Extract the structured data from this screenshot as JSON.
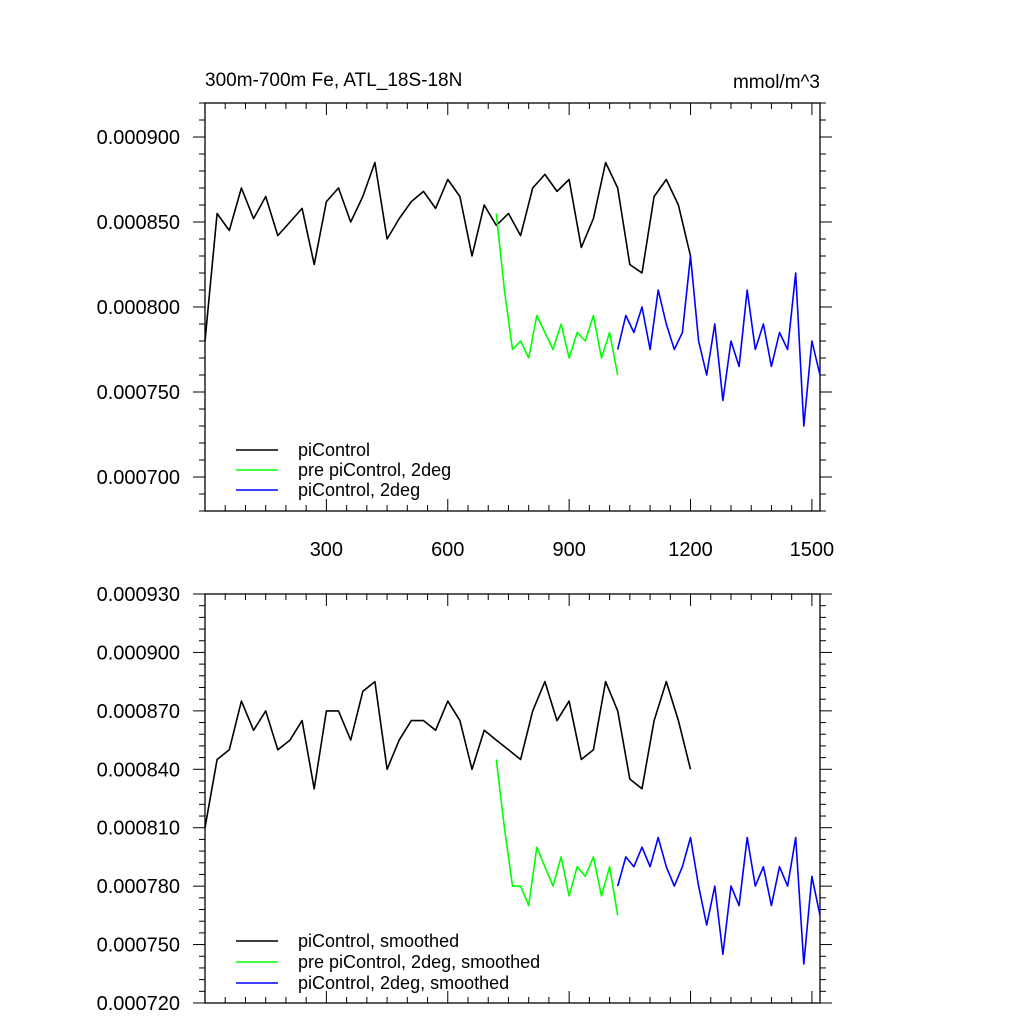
{
  "chart_data": [
    {
      "type": "line",
      "title": "300m-700m Fe, ATL_18S-18N",
      "units": "mmol/m^3",
      "xlim": [
        0,
        1520
      ],
      "ylim": [
        0.00068,
        0.00092
      ],
      "xticks": [
        300,
        600,
        900,
        1200,
        1500
      ],
      "xtick_labels": [
        "300",
        "600",
        "900",
        "1200",
        "1500"
      ],
      "yticks": [
        0.0007,
        0.00075,
        0.0008,
        0.00085,
        0.0009
      ],
      "ytick_labels": [
        "0.000700",
        "0.000750",
        "0.000800",
        "0.000850",
        "0.000900"
      ],
      "legend_position": "bottom-left",
      "series": [
        {
          "name": "piControl",
          "color": "#000000",
          "x": [
            0,
            30,
            60,
            90,
            120,
            150,
            180,
            210,
            240,
            270,
            300,
            330,
            360,
            390,
            420,
            450,
            480,
            510,
            540,
            570,
            600,
            630,
            660,
            690,
            720,
            750,
            780,
            810,
            840,
            870,
            900,
            930,
            960,
            990,
            1020,
            1050,
            1080,
            1110,
            1140,
            1170,
            1200
          ],
          "y": [
            0.00078,
            0.000855,
            0.000845,
            0.00087,
            0.000852,
            0.000865,
            0.000842,
            0.00085,
            0.000858,
            0.000825,
            0.000862,
            0.00087,
            0.00085,
            0.000865,
            0.000885,
            0.00084,
            0.000852,
            0.000862,
            0.000868,
            0.000858,
            0.000875,
            0.000865,
            0.00083,
            0.00086,
            0.000848,
            0.000855,
            0.000842,
            0.00087,
            0.000878,
            0.000868,
            0.000875,
            0.000835,
            0.000852,
            0.000885,
            0.00087,
            0.000825,
            0.00082,
            0.000865,
            0.000875,
            0.00086,
            0.00083
          ]
        },
        {
          "name": "pre piControl, 2deg",
          "color": "#00ff00",
          "x": [
            720,
            740,
            760,
            780,
            800,
            820,
            840,
            860,
            880,
            900,
            920,
            940,
            960,
            980,
            1000,
            1020
          ],
          "y": [
            0.000855,
            0.00081,
            0.000775,
            0.00078,
            0.00077,
            0.000795,
            0.000785,
            0.000775,
            0.00079,
            0.00077,
            0.000785,
            0.00078,
            0.000795,
            0.00077,
            0.000785,
            0.00076
          ]
        },
        {
          "name": "piControl, 2deg",
          "color": "#0000ff",
          "x": [
            1020,
            1040,
            1060,
            1080,
            1100,
            1120,
            1140,
            1160,
            1180,
            1200,
            1220,
            1240,
            1260,
            1280,
            1300,
            1320,
            1340,
            1360,
            1380,
            1400,
            1420,
            1440,
            1460,
            1480,
            1500,
            1520
          ],
          "y": [
            0.000775,
            0.000795,
            0.000785,
            0.0008,
            0.000775,
            0.00081,
            0.00079,
            0.000775,
            0.000785,
            0.00083,
            0.00078,
            0.00076,
            0.00079,
            0.000745,
            0.00078,
            0.000765,
            0.00081,
            0.000775,
            0.00079,
            0.000765,
            0.000785,
            0.000775,
            0.00082,
            0.00073,
            0.00078,
            0.00076
          ]
        }
      ]
    },
    {
      "type": "line",
      "title": "",
      "xlim": [
        0,
        1520
      ],
      "ylim": [
        0.00072,
        0.00093
      ],
      "xticks": [
        300,
        600,
        900,
        1200,
        1500
      ],
      "yticks": [
        0.00072,
        0.00075,
        0.00078,
        0.00081,
        0.00084,
        0.00087,
        0.0009,
        0.00093
      ],
      "ytick_labels": [
        "0.000720",
        "0.000750",
        "0.000780",
        "0.000810",
        "0.000840",
        "0.000870",
        "0.000900",
        "0.000930"
      ],
      "legend_position": "bottom-left",
      "series": [
        {
          "name": "piControl, smoothed",
          "color": "#000000",
          "x": [
            0,
            30,
            60,
            90,
            120,
            150,
            180,
            210,
            240,
            270,
            300,
            330,
            360,
            390,
            420,
            450,
            480,
            510,
            540,
            570,
            600,
            630,
            660,
            690,
            720,
            750,
            780,
            810,
            840,
            870,
            900,
            930,
            960,
            990,
            1020,
            1050,
            1080,
            1110,
            1140,
            1170,
            1200
          ],
          "y": [
            0.00081,
            0.000845,
            0.00085,
            0.000875,
            0.00086,
            0.00087,
            0.00085,
            0.000855,
            0.000865,
            0.00083,
            0.00087,
            0.00087,
            0.000855,
            0.00088,
            0.000885,
            0.00084,
            0.000855,
            0.000865,
            0.000865,
            0.00086,
            0.000875,
            0.000865,
            0.00084,
            0.00086,
            0.000855,
            0.00085,
            0.000845,
            0.00087,
            0.000885,
            0.000865,
            0.000875,
            0.000845,
            0.00085,
            0.000885,
            0.00087,
            0.000835,
            0.00083,
            0.000865,
            0.000885,
            0.000865,
            0.00084
          ]
        },
        {
          "name": "pre piControl, 2deg, smoothed",
          "color": "#00ff00",
          "x": [
            720,
            740,
            760,
            780,
            800,
            820,
            840,
            860,
            880,
            900,
            920,
            940,
            960,
            980,
            1000,
            1020
          ],
          "y": [
            0.000845,
            0.00081,
            0.00078,
            0.00078,
            0.00077,
            0.0008,
            0.00079,
            0.00078,
            0.000795,
            0.000775,
            0.00079,
            0.000785,
            0.000795,
            0.000775,
            0.00079,
            0.000765
          ]
        },
        {
          "name": "piControl, 2deg, smoothed",
          "color": "#0000ff",
          "x": [
            1020,
            1040,
            1060,
            1080,
            1100,
            1120,
            1140,
            1160,
            1180,
            1200,
            1220,
            1240,
            1260,
            1280,
            1300,
            1320,
            1340,
            1360,
            1380,
            1400,
            1420,
            1440,
            1460,
            1480,
            1500,
            1520
          ],
          "y": [
            0.00078,
            0.000795,
            0.00079,
            0.0008,
            0.00079,
            0.000805,
            0.00079,
            0.00078,
            0.00079,
            0.000805,
            0.00078,
            0.00076,
            0.00078,
            0.000745,
            0.00078,
            0.00077,
            0.000805,
            0.00078,
            0.00079,
            0.00077,
            0.00079,
            0.00078,
            0.000805,
            0.00074,
            0.000785,
            0.000765
          ]
        }
      ]
    }
  ]
}
